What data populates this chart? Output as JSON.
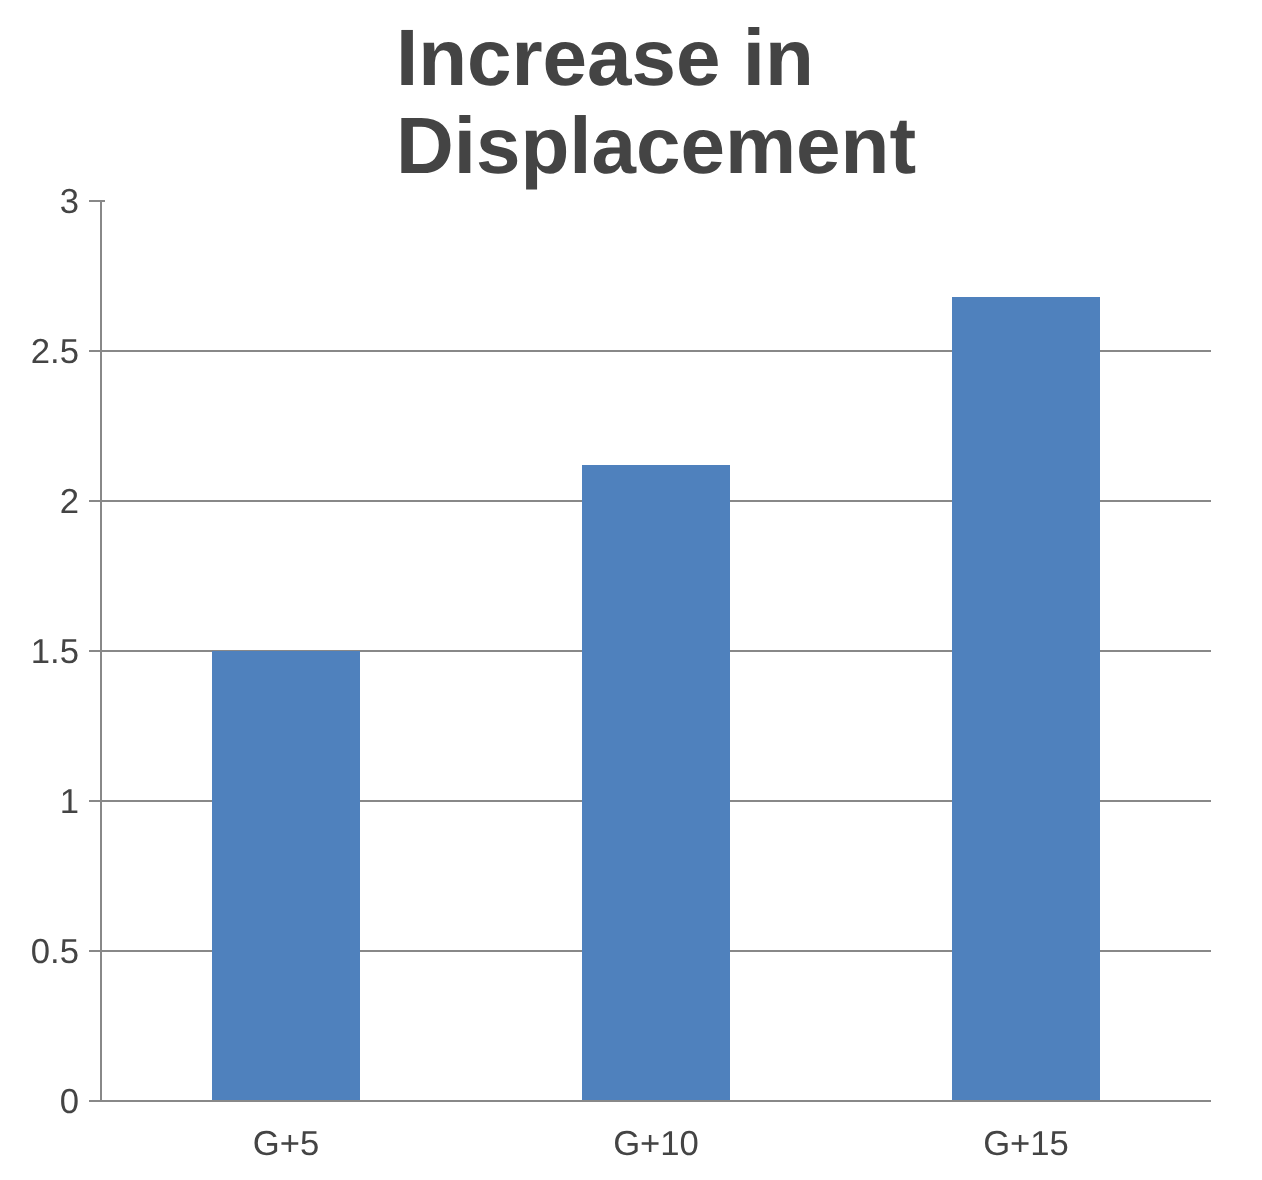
{
  "chart_data": {
    "type": "bar",
    "title": "Increase in Displacement",
    "categories": [
      "G+5",
      "G+10",
      "G+15"
    ],
    "values": [
      1.5,
      2.12,
      2.68
    ],
    "color": "#4f81bd",
    "ylim": [
      0,
      3
    ],
    "yticks": [
      0,
      0.5,
      1,
      1.5,
      2,
      2.5,
      3
    ],
    "grid": "y"
  }
}
